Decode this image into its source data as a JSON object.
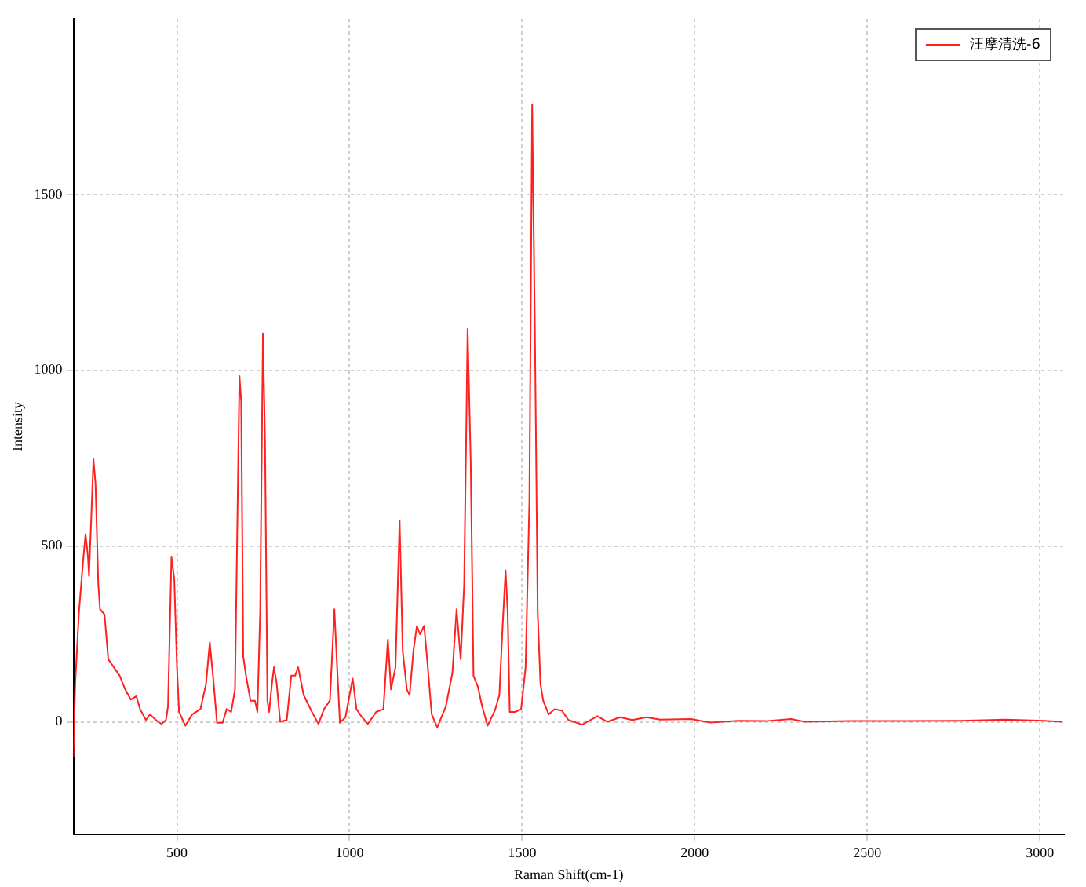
{
  "chart_data": {
    "type": "line",
    "xlabel": "Raman Shift(cm-1)",
    "ylabel": "Intensity",
    "xlim": [
      200,
      3070
    ],
    "ylim": [
      -320,
      2000
    ],
    "xticks": [
      500,
      1000,
      1500,
      2000,
      2500,
      3000
    ],
    "yticks": [
      0,
      500,
      1000,
      1500
    ],
    "grid": true,
    "legend": "top right",
    "marker": "none",
    "line_style": "solid",
    "series": [
      {
        "name": "汪摩清洗-6",
        "color": "#ff2020",
        "x": [
          200,
          205,
          216,
          229,
          235,
          242,
          245,
          251,
          258,
          264,
          272,
          277,
          290,
          301,
          317,
          334,
          350,
          366,
          382,
          393,
          410,
          422,
          439,
          455,
          468,
          474,
          484,
          492,
          500,
          506,
          524,
          544,
          568,
          584,
          595,
          605,
          616,
          632,
          644,
          657,
          668,
          681,
          686,
          692,
          700,
          713,
          726,
          733,
          741,
          749,
          755,
          762,
          767,
          775,
          781,
          789,
          799,
          818,
          831,
          842,
          851,
          867,
          891,
          910,
          926,
          943,
          956,
          964,
          972,
          988,
          1009,
          1020,
          1036,
          1053,
          1077,
          1098,
          1111,
          1120,
          1133,
          1145,
          1154,
          1166,
          1174,
          1185,
          1195,
          1204,
          1216,
          1224,
          1238,
          1254,
          1279,
          1298,
          1310,
          1322,
          1332,
          1342,
          1351,
          1359,
          1372,
          1384,
          1400,
          1421,
          1434,
          1443,
          1452,
          1458,
          1464,
          1480,
          1497,
          1510,
          1521,
          1529,
          1537,
          1545,
          1553,
          1561,
          1577,
          1594,
          1615,
          1634,
          1674,
          1718,
          1747,
          1784,
          1819,
          1860,
          1900,
          1989,
          2045,
          2126,
          2206,
          2279,
          2319,
          2448,
          2610,
          2771,
          2900,
          3013,
          3065
        ],
        "values": [
          -100,
          107,
          313,
          470,
          534,
          470,
          415,
          565,
          747,
          676,
          392,
          320,
          305,
          178,
          155,
          131,
          92,
          63,
          73,
          36,
          5,
          21,
          5,
          -6,
          5,
          44,
          470,
          407,
          155,
          28,
          -11,
          21,
          36,
          107,
          226,
          123,
          -3,
          -3,
          36,
          28,
          92,
          984,
          912,
          186,
          131,
          60,
          60,
          28,
          313,
          1105,
          802,
          60,
          28,
          107,
          155,
          107,
          0,
          5,
          131,
          131,
          155,
          76,
          28,
          -6,
          36,
          60,
          320,
          155,
          -3,
          13,
          123,
          36,
          13,
          -6,
          28,
          36,
          234,
          92,
          155,
          573,
          202,
          92,
          76,
          202,
          273,
          249,
          273,
          186,
          21,
          -16,
          44,
          139,
          320,
          178,
          392,
          1118,
          739,
          131,
          99,
          44,
          -11,
          32,
          76,
          265,
          431,
          313,
          28,
          28,
          36,
          155,
          628,
          1757,
          1102,
          313,
          107,
          60,
          21,
          36,
          32,
          5,
          -8,
          16,
          0,
          13,
          5,
          13,
          6,
          8,
          -2,
          3,
          2,
          8,
          0,
          2,
          2,
          3,
          6,
          3,
          0
        ]
      }
    ]
  }
}
